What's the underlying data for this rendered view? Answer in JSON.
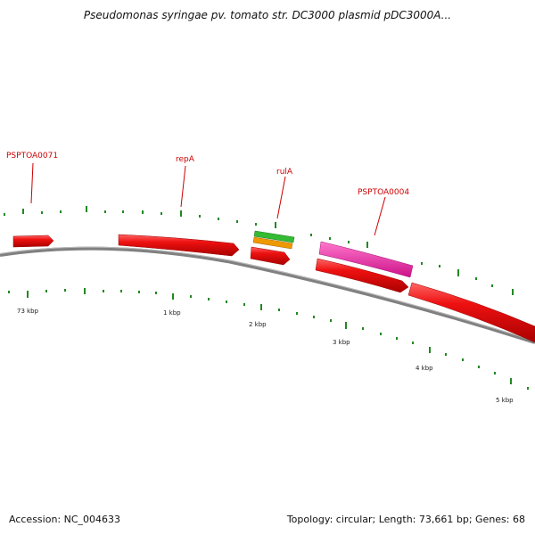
{
  "title": "Pseudomonas syringae pv. tomato str. DC3000 plasmid pDC3000A...",
  "labels": {
    "gene_1": "PSPTOA0071",
    "gene_2": "repA",
    "gene_3": "rulA",
    "gene_4": "PSPTOA0004"
  },
  "ticks": {
    "t73": "73 kbp",
    "t1": "1 kbp",
    "t2": "2 kbp",
    "t3": "3 kbp",
    "t4": "4 kbp",
    "t5": "5 kbp"
  },
  "footer": {
    "accession": "Accession: NC_004633",
    "summary": "Topology: circular; Length: 73,661 bp; Genes: 68"
  },
  "colors": {
    "gene_red": "#ee1111",
    "gene_magenta": "#ee22aa",
    "gene_green": "#33bb33",
    "gene_orange": "#ee9900",
    "backbone": "#808080",
    "tick_green": "#228822",
    "label_red": "#cc0000"
  }
}
